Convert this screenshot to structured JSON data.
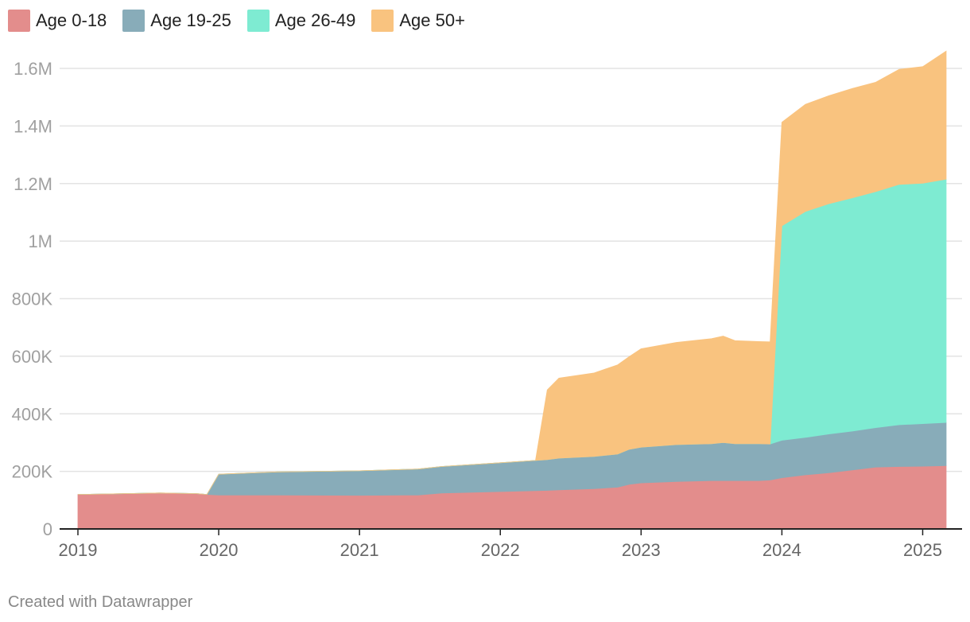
{
  "chart_data": {
    "type": "area",
    "stacked": true,
    "title": "",
    "xlabel": "",
    "ylabel": "",
    "x": [
      "2019-01",
      "2019-04",
      "2019-08",
      "2019-11",
      "2019-12",
      "2020-01",
      "2020-06",
      "2021-01",
      "2021-06",
      "2021-08",
      "2022-01",
      "2022-04",
      "2022-05",
      "2022-06",
      "2022-09",
      "2022-11",
      "2022-12",
      "2023-01",
      "2023-04",
      "2023-07",
      "2023-08",
      "2023-09",
      "2023-11",
      "2023-12",
      "2024-01",
      "2024-03",
      "2024-05",
      "2024-07",
      "2024-09",
      "2024-11",
      "2025-01",
      "2025-03"
    ],
    "series": [
      {
        "name": "Age 0-18",
        "color": "#e38d8c",
        "values": [
          120000,
          122000,
          125000,
          123000,
          120000,
          118000,
          118000,
          117000,
          118000,
          125000,
          130000,
          133000,
          134000,
          136000,
          140000,
          145000,
          155000,
          160000,
          165000,
          168000,
          168000,
          168000,
          168000,
          170000,
          178000,
          188000,
          195000,
          205000,
          215000,
          217000,
          218000,
          220000
        ]
      },
      {
        "name": "Age 19-25",
        "color": "#88acb9",
        "values": [
          0,
          0,
          0,
          0,
          0,
          72000,
          80000,
          85000,
          90000,
          92000,
          100000,
          105000,
          107000,
          110000,
          112000,
          115000,
          122000,
          124000,
          128000,
          128000,
          132000,
          128000,
          128000,
          125000,
          130000,
          130000,
          135000,
          135000,
          137000,
          145000,
          148000,
          150000
        ]
      },
      {
        "name": "Age 26-49",
        "color": "#7eebd2",
        "values": [
          0,
          0,
          0,
          0,
          0,
          0,
          0,
          0,
          0,
          0,
          0,
          0,
          0,
          0,
          0,
          0,
          0,
          0,
          0,
          0,
          0,
          0,
          0,
          0,
          745000,
          785000,
          800000,
          810000,
          820000,
          835000,
          835000,
          845000
        ]
      },
      {
        "name": "Age 50+",
        "color": "#f9c37f",
        "values": [
          0,
          0,
          0,
          0,
          0,
          0,
          0,
          0,
          0,
          0,
          0,
          0,
          242000,
          278000,
          290000,
          310000,
          322000,
          342000,
          355000,
          365000,
          370000,
          358000,
          355000,
          355000,
          360000,
          372000,
          375000,
          380000,
          380000,
          400000,
          405000,
          445000
        ]
      }
    ],
    "ylim": [
      0,
      1650000
    ],
    "y_ticks": [
      {
        "value": 0,
        "label": "0"
      },
      {
        "value": 200000,
        "label": "200K"
      },
      {
        "value": 400000,
        "label": "400K"
      },
      {
        "value": 600000,
        "label": "600K"
      },
      {
        "value": 800000,
        "label": "800K"
      },
      {
        "value": 1000000,
        "label": "1M"
      },
      {
        "value": 1200000,
        "label": "1.2M"
      },
      {
        "value": 1400000,
        "label": "1.4M"
      },
      {
        "value": 1600000,
        "label": "1.6M"
      }
    ],
    "x_ticks": [
      {
        "value": "2019-01",
        "label": "2019"
      },
      {
        "value": "2020-01",
        "label": "2020"
      },
      {
        "value": "2021-01",
        "label": "2021"
      },
      {
        "value": "2022-01",
        "label": "2022"
      },
      {
        "value": "2023-01",
        "label": "2023"
      },
      {
        "value": "2024-01",
        "label": "2024"
      },
      {
        "value": "2025-01",
        "label": "2025"
      }
    ],
    "grid": true,
    "legend": "top-left"
  },
  "footer": {
    "credit": "Created with Datawrapper"
  }
}
